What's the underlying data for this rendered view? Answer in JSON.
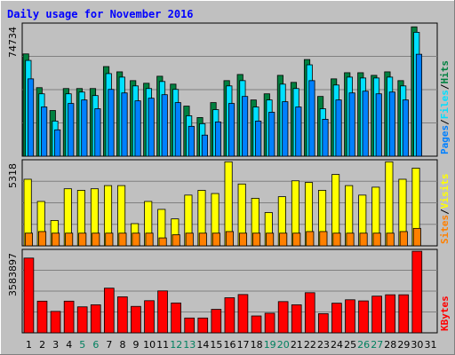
{
  "chart_data": [
    {
      "type": "bar",
      "title": "Daily usage for November 2016",
      "panel": "hits-files-pages",
      "categories": [
        "1",
        "2",
        "3",
        "4",
        "5",
        "6",
        "7",
        "8",
        "9",
        "10",
        "11",
        "12",
        "13",
        "14",
        "15",
        "16",
        "17",
        "18",
        "19",
        "20",
        "21",
        "22",
        "23",
        "24",
        "25",
        "26",
        "27",
        "28",
        "29",
        "30",
        "31"
      ],
      "weekend_days": [
        "5",
        "6",
        "12",
        "13",
        "19",
        "20",
        "26",
        "27"
      ],
      "ymax_label": "74734",
      "ylim": [
        0,
        74734
      ],
      "legend": [
        "Pages",
        "Files",
        "Hits"
      ],
      "series": [
        {
          "name": "Hits",
          "color": "#008040",
          "values": [
            58200,
            39000,
            26000,
            38500,
            38500,
            38500,
            51000,
            48000,
            43000,
            41500,
            45500,
            41000,
            28500,
            22000,
            30500,
            43000,
            46500,
            32000,
            35500,
            46000,
            42000,
            55000,
            34000,
            44000,
            47500,
            47500,
            46000,
            48000,
            43000,
            73600,
            null
          ]
        },
        {
          "name": "Files",
          "color": "#00e0ff",
          "values": [
            54500,
            35500,
            20000,
            35500,
            36500,
            34500,
            47000,
            45000,
            40000,
            38500,
            42500,
            38000,
            23000,
            18500,
            26500,
            40000,
            43000,
            28000,
            32000,
            41000,
            38500,
            52000,
            27000,
            40500,
            45000,
            44500,
            44500,
            45000,
            40000,
            70500,
            null
          ]
        },
        {
          "name": "Pages",
          "color": "#0080ff",
          "values": [
            44000,
            28000,
            15000,
            30000,
            32000,
            27000,
            38000,
            36000,
            31500,
            33000,
            35000,
            30500,
            17000,
            12000,
            19500,
            30000,
            34000,
            20000,
            25000,
            31000,
            28000,
            43000,
            21000,
            32000,
            36000,
            37000,
            35500,
            36500,
            32000,
            58000,
            null
          ]
        }
      ]
    },
    {
      "type": "bar",
      "panel": "visits-sites",
      "categories": [
        "1",
        "2",
        "3",
        "4",
        "5",
        "6",
        "7",
        "8",
        "9",
        "10",
        "11",
        "12",
        "13",
        "14",
        "15",
        "16",
        "17",
        "18",
        "19",
        "20",
        "21",
        "22",
        "23",
        "24",
        "25",
        "26",
        "27",
        "28",
        "29",
        "30",
        "31"
      ],
      "ymax_label": "5318",
      "ylim": [
        0,
        5318
      ],
      "legend": [
        "Sites",
        "Visits"
      ],
      "series": [
        {
          "name": "Visits",
          "color": "#ffff00",
          "values": [
            4200,
            2800,
            1600,
            3600,
            3500,
            3600,
            3800,
            3800,
            1400,
            2800,
            2300,
            1700,
            3200,
            3500,
            3300,
            5300,
            3900,
            3000,
            2100,
            3100,
            4100,
            4000,
            3500,
            4500,
            3800,
            3200,
            3700,
            5300,
            4200,
            4900,
            null
          ]
        },
        {
          "name": "Sites",
          "color": "#ff8000",
          "values": [
            800,
            900,
            800,
            800,
            800,
            800,
            800,
            800,
            800,
            800,
            500,
            700,
            800,
            800,
            800,
            900,
            800,
            800,
            800,
            800,
            800,
            900,
            900,
            800,
            800,
            800,
            800,
            800,
            900,
            1100,
            null
          ]
        }
      ]
    },
    {
      "type": "bar",
      "panel": "kbytes",
      "categories": [
        "1",
        "2",
        "3",
        "4",
        "5",
        "6",
        "7",
        "8",
        "9",
        "10",
        "11",
        "12",
        "13",
        "14",
        "15",
        "16",
        "17",
        "18",
        "19",
        "20",
        "21",
        "22",
        "23",
        "24",
        "25",
        "26",
        "27",
        "28",
        "29",
        "30",
        "31"
      ],
      "ymax_label": "3583897",
      "ylim": [
        0,
        3583897
      ],
      "legend": [
        "KBytes"
      ],
      "series": [
        {
          "name": "KBytes",
          "color": "#ff0000",
          "values": [
            3280000,
            1390000,
            940000,
            1390000,
            1140000,
            1230000,
            1960000,
            1580000,
            1160000,
            1410000,
            1840000,
            1310000,
            650000,
            650000,
            1030000,
            1540000,
            1680000,
            740000,
            860000,
            1370000,
            1230000,
            1760000,
            840000,
            1300000,
            1450000,
            1400000,
            1610000,
            1670000,
            1670000,
            3580000,
            null
          ]
        }
      ]
    }
  ]
}
